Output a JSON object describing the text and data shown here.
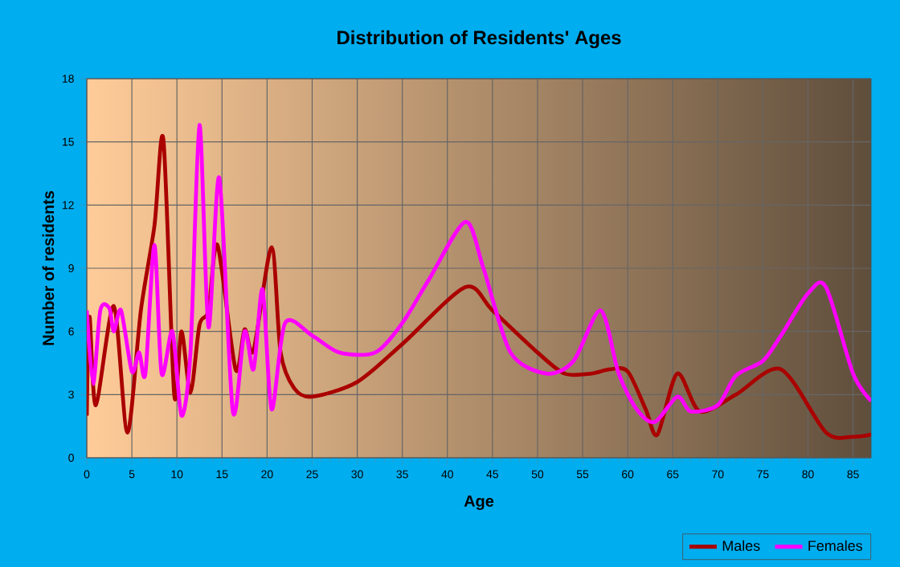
{
  "chart_data": {
    "type": "line",
    "title": "Distribution of Residents' Ages",
    "xlabel": "Age",
    "ylabel": "Number of residents",
    "xlim": [
      0,
      87
    ],
    "ylim": [
      0,
      18
    ],
    "xticks": [
      0,
      5,
      10,
      15,
      20,
      25,
      30,
      35,
      40,
      45,
      50,
      55,
      60,
      65,
      70,
      75,
      80,
      85
    ],
    "yticks": [
      0,
      3,
      6,
      9,
      12,
      15,
      18
    ],
    "grid": true,
    "legend": "bottom right",
    "marker": "none",
    "line_style": "solid",
    "series": [
      {
        "name": "Males",
        "color": "#aa0000",
        "x": [
          0,
          0.3,
          1,
          3,
          4.5,
          6,
          7.5,
          8.5,
          9.7,
          10.5,
          11.5,
          12.5,
          13.5,
          14.5,
          16.5,
          17.5,
          18.5,
          20.5,
          21.5,
          23,
          25,
          30,
          35,
          42,
          45,
          50,
          53,
          56,
          58,
          60,
          62,
          63.3,
          65.5,
          68,
          72,
          77,
          82,
          85,
          87
        ],
        "values": [
          2,
          6.7,
          2.5,
          7.2,
          1.2,
          7,
          11,
          15.1,
          3,
          6,
          3.1,
          6.3,
          7,
          10.1,
          4.2,
          6.1,
          5.1,
          10,
          5,
          3.3,
          2.9,
          3.6,
          5.4,
          8.1,
          7,
          5,
          4,
          4,
          4.2,
          4.1,
          2.3,
          1.1,
          4,
          2.2,
          3,
          4.2,
          1.2,
          1,
          1.1
        ]
      },
      {
        "name": "Females",
        "color": "#ff00ff",
        "x": [
          0,
          0.7,
          1.5,
          2.5,
          3,
          3.8,
          5,
          5.8,
          6.5,
          7.5,
          8.3,
          9.5,
          10.5,
          11.5,
          12.5,
          13.5,
          14.7,
          16.2,
          17.5,
          18.5,
          19.5,
          20.5,
          22,
          25,
          28,
          32,
          35,
          38,
          42,
          44,
          47,
          51,
          54,
          57,
          59,
          61,
          63,
          65.5,
          67,
          70,
          72,
          75,
          77,
          80,
          82,
          85,
          87
        ],
        "values": [
          7,
          3.5,
          7,
          7.1,
          6,
          7,
          4.1,
          5,
          4,
          10.1,
          4,
          6,
          2,
          5,
          15.8,
          6.2,
          13.3,
          2.2,
          6,
          4.2,
          8,
          2.3,
          6.4,
          5.8,
          5,
          5,
          6.4,
          8.5,
          11.2,
          9,
          5,
          4,
          4.6,
          7,
          4,
          2.3,
          1.7,
          2.9,
          2.2,
          2.5,
          3.9,
          4.6,
          5.8,
          7.8,
          8.1,
          4,
          2.7
        ]
      }
    ]
  }
}
